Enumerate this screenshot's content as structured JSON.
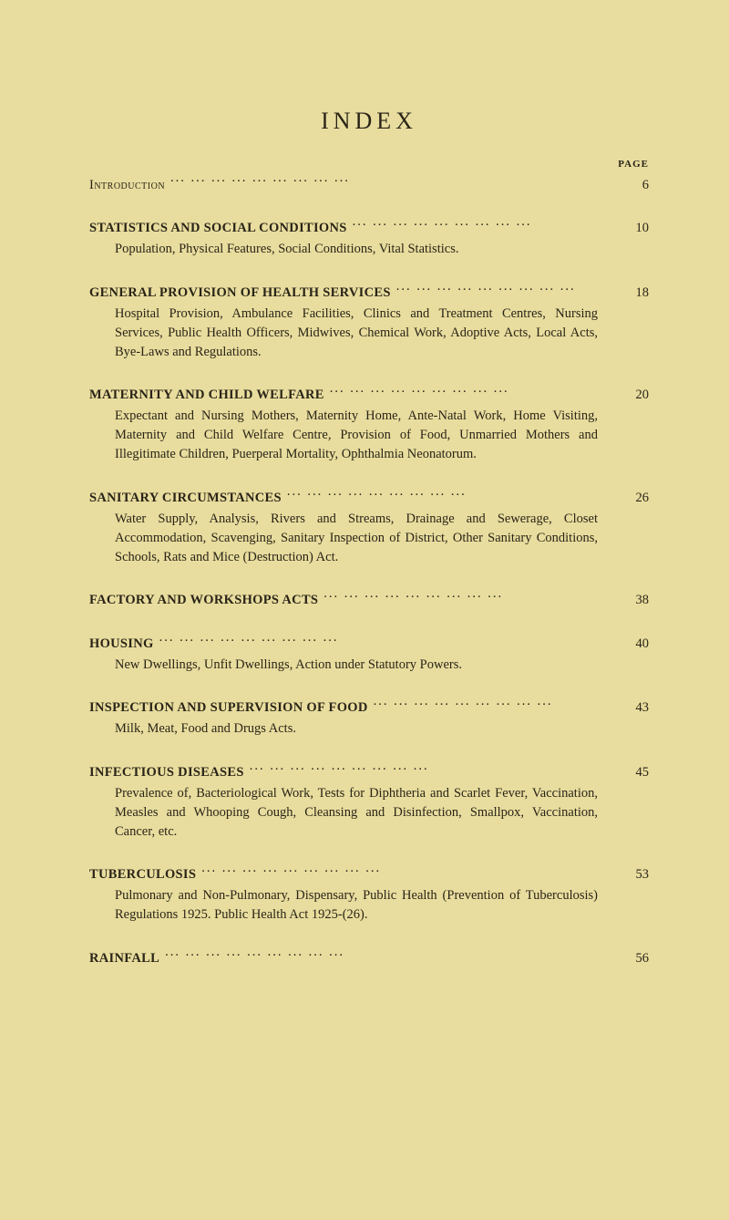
{
  "title": "INDEX",
  "page_label": "PAGE",
  "colors": {
    "background": "#e8dd9e",
    "text": "#2a2418"
  },
  "typography": {
    "title_fontsize_pt": 20,
    "body_fontsize_pt": 11,
    "font_family": "serif"
  },
  "entries": [
    {
      "heading": "Introduction",
      "style": "smallcaps",
      "page": "6",
      "desc": ""
    },
    {
      "heading": "STATISTICS AND SOCIAL CONDITIONS",
      "style": "bold",
      "page": "10",
      "desc": "Population, Physical Features, Social Conditions, Vital Statistics."
    },
    {
      "heading": "GENERAL PROVISION OF HEALTH SERVICES",
      "style": "bold",
      "page": "18",
      "desc": "Hospital Provision, Ambulance Facilities, Clinics and Treatment Centres, Nursing Services, Public Health Officers, Midwives, Chemical Work, Adoptive Acts, Local Acts, Bye-Laws and Regulations."
    },
    {
      "heading": "MATERNITY AND CHILD WELFARE",
      "style": "bold",
      "page": "20",
      "desc": "Expectant and Nursing Mothers, Maternity Home, Ante-Natal Work, Home Visiting, Maternity and Child Welfare Centre, Provision of Food, Unmarried Mothers and Illegitimate Children, Puerperal Mortality, Ophthalmia Neonatorum."
    },
    {
      "heading": "SANITARY CIRCUMSTANCES",
      "style": "bold",
      "page": "26",
      "desc": "Water Supply, Analysis, Rivers and Streams, Drainage and Sewerage, Closet Accommodation, Scavenging, Sanitary Inspection of District, Other Sanitary Conditions, Schools, Rats and Mice (Destruction) Act."
    },
    {
      "heading": "FACTORY AND WORKSHOPS ACTS",
      "style": "bold",
      "page": "38",
      "desc": ""
    },
    {
      "heading": "HOUSING",
      "style": "bold",
      "page": "40",
      "desc": "New Dwellings, Unfit Dwellings, Action under Statutory Powers."
    },
    {
      "heading": "INSPECTION AND SUPERVISION OF FOOD",
      "style": "bold",
      "page": "43",
      "desc": "Milk, Meat, Food and Drugs Acts."
    },
    {
      "heading": "INFECTIOUS DISEASES",
      "style": "bold",
      "page": "45",
      "desc": "Prevalence of, Bacteriological Work, Tests for Diphtheria and Scarlet Fever, Vaccination, Measles and Whooping Cough, Cleansing and Disinfection, Smallpox, Vaccination, Cancer, etc."
    },
    {
      "heading": "TUBERCULOSIS",
      "style": "bold",
      "page": "53",
      "desc": "Pulmonary and Non-Pulmonary, Dispensary, Public Health (Prevention of Tuberculosis) Regulations 1925. Public Health Act 1925-(26)."
    },
    {
      "heading": "RAINFALL",
      "style": "bold",
      "page": "56",
      "desc": ""
    }
  ]
}
